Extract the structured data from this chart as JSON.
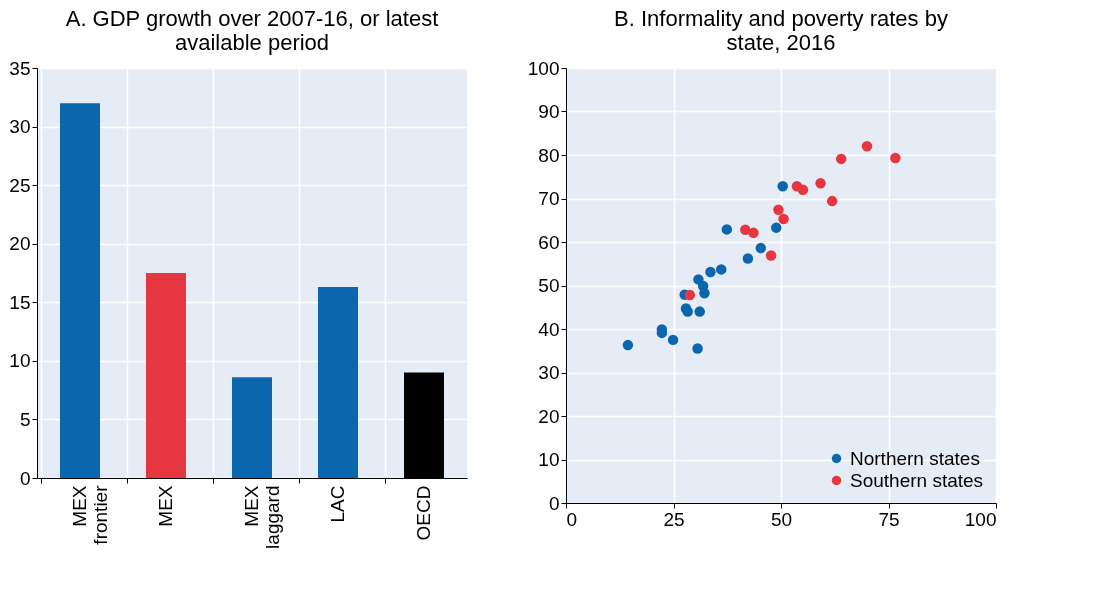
{
  "chart_data": [
    {
      "type": "bar",
      "title": "A. GDP growth over 2007-16, or latest available period",
      "categories": [
        "MEX frontier",
        "MEX",
        "MEX laggard",
        "LAC",
        "OECD"
      ],
      "values": [
        32,
        17.5,
        8.6,
        16.3,
        9.0
      ],
      "colors": [
        "#0c66ad",
        "#e63640",
        "#0c66ad",
        "#0c66ad",
        "#000000"
      ],
      "ylim": [
        0,
        35
      ],
      "yticks": [
        0,
        5,
        10,
        15,
        20,
        25,
        30,
        35
      ],
      "grid": true
    },
    {
      "type": "scatter",
      "title": "B. Informality and poverty rates by state, 2016",
      "xlim": [
        0,
        100
      ],
      "xticks": [
        0,
        25,
        50,
        75,
        100
      ],
      "ylim": [
        0,
        100
      ],
      "yticks": [
        0,
        10,
        20,
        30,
        40,
        50,
        60,
        70,
        80,
        90,
        100
      ],
      "grid": true,
      "legend": "bottom right",
      "marker": "circle",
      "series": [
        {
          "name": "Northern states",
          "color": "#0c66ad",
          "x": [
            14.4,
            22.3,
            22.3,
            24.9,
            30.6,
            27.6,
            27.9,
            28.3,
            31.1,
            30.8,
            31.9,
            32.2,
            33.6,
            36.1,
            42.3,
            45.3,
            37.4,
            48.9,
            50.4
          ],
          "values": [
            36.3,
            39.9,
            39.1,
            37.5,
            35.5,
            47.9,
            44.7,
            44.0,
            44.0,
            51.4,
            49.9,
            48.2,
            53.1,
            53.7,
            56.2,
            58.6,
            62.9,
            63.3,
            72.8
          ]
        },
        {
          "name": "Southern states",
          "color": "#e63640",
          "x": [
            28.8,
            41.7,
            43.6,
            47.7,
            49.4,
            50.6,
            53.7,
            55.1,
            59.2,
            61.9,
            64.0,
            70.0,
            76.6
          ],
          "values": [
            47.8,
            62.8,
            62.1,
            56.9,
            67.4,
            65.3,
            72.8,
            72.0,
            73.5,
            69.4,
            79.1,
            82.0,
            79.3
          ]
        }
      ]
    }
  ]
}
